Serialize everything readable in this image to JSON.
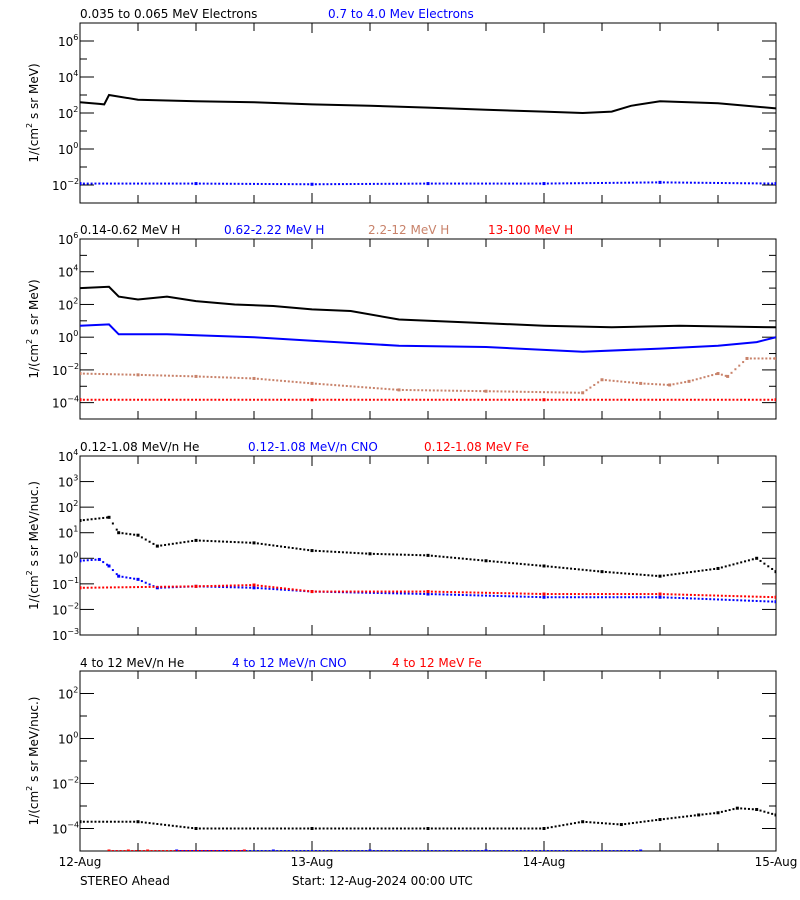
{
  "colors": {
    "black": "#000000",
    "blue": "#0000ff",
    "brown": "#c8826a",
    "red": "#ff0000"
  },
  "footer": {
    "spacecraft": "STEREO Ahead",
    "start": "Start: 12-Aug-2024 00:00 UTC"
  },
  "chart_data": [
    {
      "type": "line",
      "ylabel": "1/(cm² s sr MeV)",
      "ylabel_parts": {
        "pre": "1/(cm",
        "sup": "2",
        "post": " s sr MeV)"
      },
      "yscale": "log",
      "ylim": [
        0.001,
        10000000.0
      ],
      "ytick_exponents": [
        6,
        4,
        2,
        0,
        -2
      ],
      "xlim": [
        "12-Aug",
        "15-Aug"
      ],
      "xtick_labels": [
        "12-Aug",
        "13-Aug",
        "14-Aug",
        "15-Aug"
      ],
      "x_units": "hours since 12-Aug-2024 00:00 UTC",
      "series": [
        {
          "name": "0.035 to 0.065 MeV Electrons",
          "color": "black",
          "style": "line",
          "points": [
            [
              0,
              400
            ],
            [
              2,
              320
            ],
            [
              2.5,
              300
            ],
            [
              3,
              1000
            ],
            [
              6,
              550
            ],
            [
              12,
              450
            ],
            [
              18,
              400
            ],
            [
              24,
              300
            ],
            [
              30,
              250
            ],
            [
              36,
              200
            ],
            [
              42,
              150
            ],
            [
              48,
              120
            ],
            [
              52,
              100
            ],
            [
              55,
              120
            ],
            [
              57,
              250
            ],
            [
              60,
              450
            ],
            [
              66,
              350
            ],
            [
              72,
              180
            ]
          ]
        },
        {
          "name": "0.7 to 4.0 Mev Electrons",
          "color": "blue",
          "style": "dots",
          "points": [
            [
              0,
              0.012
            ],
            [
              12,
              0.012
            ],
            [
              24,
              0.011
            ],
            [
              36,
              0.012
            ],
            [
              48,
              0.012
            ],
            [
              60,
              0.014
            ],
            [
              72,
              0.012
            ]
          ]
        }
      ]
    },
    {
      "type": "line",
      "ylabel": "1/(cm² s sr MeV)",
      "ylabel_parts": {
        "pre": "1/(cm",
        "sup": "2",
        "post": " s sr MeV)"
      },
      "yscale": "log",
      "ylim": [
        1e-05,
        1000000.0
      ],
      "ytick_exponents": [
        6,
        4,
        2,
        0,
        -2,
        -4
      ],
      "series": [
        {
          "name": "0.14-0.62 MeV H",
          "color": "black",
          "style": "line",
          "points": [
            [
              0,
              1000
            ],
            [
              3,
              1200
            ],
            [
              4,
              300
            ],
            [
              6,
              200
            ],
            [
              9,
              300
            ],
            [
              12,
              160
            ],
            [
              16,
              100
            ],
            [
              20,
              80
            ],
            [
              24,
              50
            ],
            [
              28,
              40
            ],
            [
              33,
              12
            ],
            [
              40,
              8
            ],
            [
              48,
              5
            ],
            [
              55,
              4
            ],
            [
              62,
              5
            ],
            [
              72,
              4
            ]
          ]
        },
        {
          "name": "0.62-2.22 MeV H",
          "color": "blue",
          "style": "line",
          "points": [
            [
              0,
              5
            ],
            [
              3,
              6
            ],
            [
              4,
              1.5
            ],
            [
              9,
              1.5
            ],
            [
              12,
              1.3
            ],
            [
              18,
              1
            ],
            [
              24,
              0.6
            ],
            [
              33,
              0.3
            ],
            [
              42,
              0.25
            ],
            [
              52,
              0.13
            ],
            [
              60,
              0.2
            ],
            [
              66,
              0.3
            ],
            [
              70,
              0.5
            ],
            [
              72,
              1
            ]
          ]
        },
        {
          "name": "2.2-12 MeV H",
          "color": "brown",
          "style": "dots",
          "points": [
            [
              0,
              0.006
            ],
            [
              6,
              0.005
            ],
            [
              12,
              0.004
            ],
            [
              18,
              0.003
            ],
            [
              24,
              0.0015
            ],
            [
              33,
              0.0006
            ],
            [
              42,
              0.0005
            ],
            [
              52,
              0.0004
            ],
            [
              54,
              0.0025
            ],
            [
              58,
              0.0015
            ],
            [
              61,
              0.0012
            ],
            [
              63,
              0.002
            ],
            [
              66,
              0.006
            ],
            [
              67,
              0.004
            ],
            [
              69,
              0.05
            ],
            [
              72,
              0.05
            ]
          ]
        },
        {
          "name": "13-100 MeV H",
          "color": "red",
          "style": "dots",
          "points": [
            [
              0,
              0.00015
            ],
            [
              24,
              0.00015
            ],
            [
              48,
              0.00015
            ],
            [
              72,
              0.00015
            ]
          ]
        }
      ]
    },
    {
      "type": "scatter",
      "ylabel": "1/(cm² s sr MeV/nuc.)",
      "ylabel_parts": {
        "pre": "1/(cm",
        "sup": "2",
        "post": " s sr MeV/nuc.)"
      },
      "yscale": "log",
      "ylim": [
        0.001,
        10000.0
      ],
      "ytick_exponents": [
        4,
        3,
        2,
        1,
        0,
        -1,
        -2,
        -3
      ],
      "series": [
        {
          "name": "0.12-1.08 MeV/n He",
          "color": "black",
          "style": "dots",
          "points": [
            [
              0,
              30
            ],
            [
              3,
              40
            ],
            [
              4,
              10
            ],
            [
              6,
              8
            ],
            [
              8,
              3
            ],
            [
              12,
              5
            ],
            [
              18,
              4
            ],
            [
              24,
              2
            ],
            [
              30,
              1.5
            ],
            [
              36,
              1.3
            ],
            [
              42,
              0.8
            ],
            [
              48,
              0.5
            ],
            [
              54,
              0.3
            ],
            [
              60,
              0.2
            ],
            [
              66,
              0.4
            ],
            [
              70,
              1
            ],
            [
              72,
              0.3
            ]
          ]
        },
        {
          "name": "0.12-1.08 MeV/n CNO",
          "color": "blue",
          "style": "dots",
          "points": [
            [
              0,
              0.8
            ],
            [
              2,
              0.9
            ],
            [
              3,
              0.5
            ],
            [
              4,
              0.2
            ],
            [
              6,
              0.15
            ],
            [
              8,
              0.07
            ],
            [
              12,
              0.08
            ],
            [
              18,
              0.07
            ],
            [
              24,
              0.05
            ],
            [
              36,
              0.04
            ],
            [
              48,
              0.03
            ],
            [
              60,
              0.03
            ],
            [
              72,
              0.02
            ]
          ]
        },
        {
          "name": "0.12-1.08 MeV Fe",
          "color": "red",
          "style": "dots",
          "points": [
            [
              0,
              0.07
            ],
            [
              12,
              0.08
            ],
            [
              18,
              0.09
            ],
            [
              24,
              0.05
            ],
            [
              36,
              0.05
            ],
            [
              48,
              0.04
            ],
            [
              60,
              0.04
            ],
            [
              72,
              0.03
            ]
          ]
        }
      ]
    },
    {
      "type": "scatter",
      "ylabel": "1/(cm² s sr MeV/nuc.)",
      "ylabel_parts": {
        "pre": "1/(cm",
        "sup": "2",
        "post": " s sr MeV/nuc.)"
      },
      "yscale": "log",
      "ylim": [
        1e-05,
        1000.0
      ],
      "ytick_exponents": [
        2,
        0,
        -2,
        -4
      ],
      "series": [
        {
          "name": "4 to 12 MeV/n He",
          "color": "black",
          "style": "dots",
          "points": [
            [
              0,
              0.0002
            ],
            [
              6,
              0.0002
            ],
            [
              12,
              0.0001
            ],
            [
              24,
              0.0001
            ],
            [
              36,
              0.0001
            ],
            [
              48,
              0.0001
            ],
            [
              52,
              0.0002
            ],
            [
              56,
              0.00015
            ],
            [
              60,
              0.00025
            ],
            [
              64,
              0.0004
            ],
            [
              66,
              0.0005
            ],
            [
              68,
              0.0008
            ],
            [
              70,
              0.0007
            ],
            [
              72,
              0.0004
            ]
          ]
        },
        {
          "name": "4 to 12 MeV/n CNO",
          "color": "blue",
          "style": "dots",
          "points": [
            [
              3,
              1e-05
            ],
            [
              10,
              1e-05
            ],
            [
              20,
              1e-05
            ],
            [
              30,
              1e-05
            ],
            [
              42,
              1e-05
            ],
            [
              58,
              1e-05
            ]
          ]
        },
        {
          "name": "4 to 12 MeV Fe",
          "color": "red",
          "style": "dots",
          "points": [
            [
              3,
              1e-05
            ],
            [
              5,
              1e-05
            ],
            [
              7,
              1e-05
            ],
            [
              17,
              1e-05
            ]
          ]
        }
      ]
    }
  ]
}
